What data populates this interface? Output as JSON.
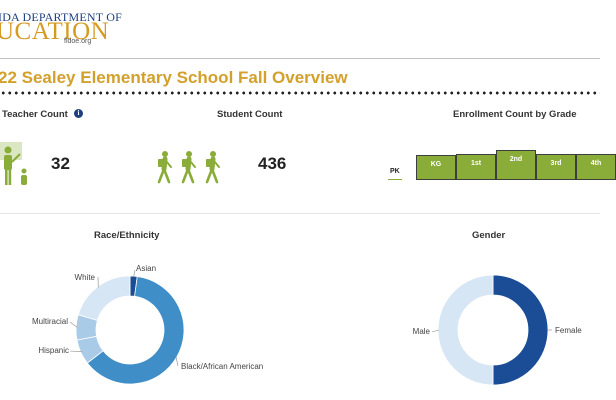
{
  "logo": {
    "line1": "IDA DEPARTMENT OF",
    "line2": "UCATION",
    "url": "fldoe.org"
  },
  "page_title": "22 Sealey Elementary School Fall Overview",
  "teacher": {
    "label": "Teacher Count",
    "info_icon_glyph": "i",
    "value": "32",
    "icon": "teacher-student-icon"
  },
  "student": {
    "label": "Student Count",
    "value": "436",
    "icon": "walking-students-icon"
  },
  "colors": {
    "accent_gold": "#d3a12b",
    "green": "#8aac38",
    "navy": "#1f3f80",
    "mid_blue": "#3f8ec8",
    "light_blue": "#a9cbe8",
    "pale_blue": "#d7e6f5",
    "dark_blue": "#1a4d96"
  },
  "chart_data": [
    {
      "type": "bar",
      "title": "Enrollment Count by Grade",
      "categories": [
        "PK",
        "KG",
        "1st",
        "2nd",
        "3rd",
        "4th"
      ],
      "values": [
        2,
        62,
        66,
        76,
        66,
        66
      ],
      "ylim": [
        0,
        80
      ]
    },
    {
      "type": "pie",
      "title": "Race/Ethnicity",
      "labels": [
        "Asian",
        "Black/African American",
        "Hispanic",
        "Multiracial",
        "White"
      ],
      "values": [
        2,
        58,
        7,
        7,
        19
      ]
    },
    {
      "type": "pie",
      "title": "Gender",
      "labels": [
        "Female",
        "Male"
      ],
      "values": [
        50,
        50
      ]
    }
  ]
}
